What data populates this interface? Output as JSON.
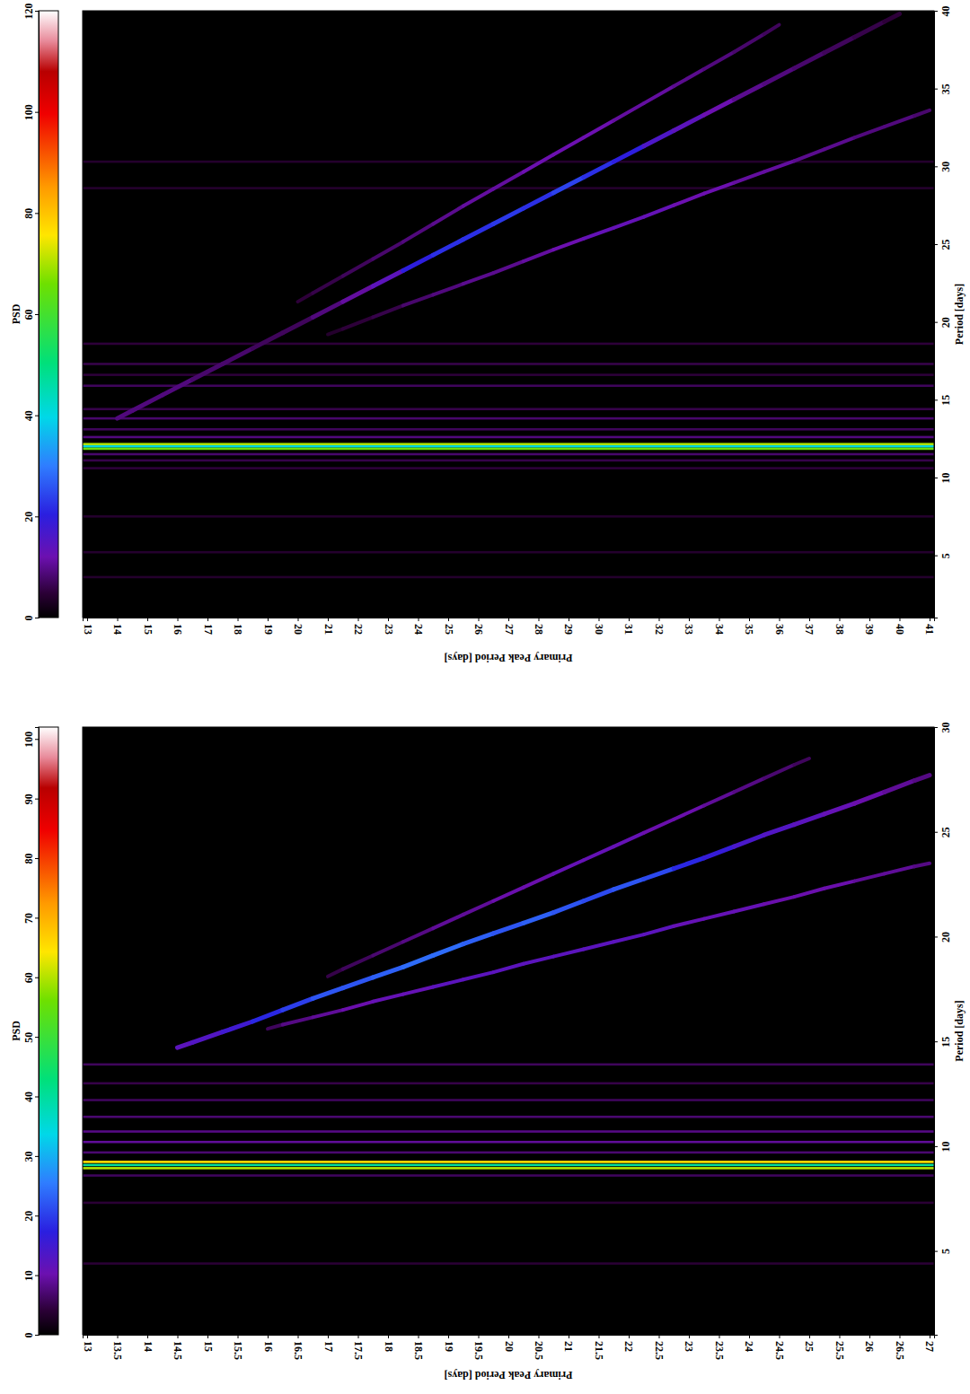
{
  "chart_data": [
    {
      "type": "heatmap",
      "xlabel": "Primary Peak Period [days]",
      "ylabel": "Period [days]",
      "xlim": [
        12.85,
        41.15
      ],
      "xticks": [
        13,
        14,
        15,
        16,
        17,
        18,
        19,
        20,
        21,
        22,
        23,
        24,
        25,
        26,
        27,
        28,
        29,
        30,
        31,
        32,
        33,
        34,
        35,
        36,
        37,
        38,
        39,
        40,
        41
      ],
      "ylim": [
        1,
        40
      ],
      "yticks": [
        5,
        10,
        15,
        20,
        25,
        30,
        35,
        40
      ],
      "colorbar": {
        "label": "PSD",
        "range": [
          0,
          120
        ],
        "ticks": [
          0,
          20,
          40,
          60,
          80,
          100,
          120
        ]
      },
      "bands": {
        "y": [
          30.3,
          28.6,
          18.6,
          17.3,
          16.6,
          15.9,
          14.4,
          13.8,
          13.1,
          12.6,
          12.15,
          12.0,
          11.85,
          11.5,
          11.1,
          10.6,
          7.5,
          5.2,
          3.6
        ],
        "values": [
          4,
          4,
          5,
          6,
          5,
          7,
          6,
          8,
          7,
          9,
          70,
          40,
          65,
          8,
          6,
          5,
          4,
          4,
          4
        ]
      },
      "ridges": [
        {
          "x": [
            14,
            15,
            16,
            17,
            18,
            19,
            20,
            21,
            22,
            23,
            24,
            25,
            26,
            27,
            28,
            29,
            30,
            31,
            32,
            33,
            34,
            35,
            36,
            37,
            38,
            39,
            40
          ],
          "y": [
            13.8,
            14.8,
            15.8,
            16.8,
            17.8,
            18.8,
            19.8,
            20.8,
            21.8,
            22.8,
            23.8,
            24.8,
            25.8,
            26.8,
            27.8,
            28.8,
            29.8,
            30.8,
            31.8,
            32.8,
            33.8,
            34.8,
            35.8,
            36.8,
            37.8,
            38.8,
            39.8
          ],
          "values": [
            9,
            9,
            9,
            8,
            8,
            7,
            7,
            9,
            11,
            14,
            20,
            22,
            22,
            23,
            22,
            24,
            22,
            20,
            16,
            14,
            12,
            10,
            9,
            8,
            7,
            6,
            5
          ]
        },
        {
          "x": [
            20,
            21,
            22,
            23,
            24,
            25,
            26,
            27,
            28,
            29,
            30,
            31,
            32,
            33,
            34,
            35,
            36
          ],
          "y": [
            21.3,
            22.4,
            23.5,
            24.6,
            25.7,
            26.9,
            28.0,
            29.1,
            30.2,
            31.3,
            32.4,
            33.5,
            34.6,
            35.7,
            36.8,
            37.9,
            39.1
          ],
          "values": [
            5,
            6,
            7,
            8,
            9,
            10,
            11,
            11,
            12,
            12,
            12,
            11,
            11,
            10,
            9,
            8,
            7
          ]
        },
        {
          "x": [
            21,
            22,
            23,
            24,
            25,
            26,
            27,
            28,
            29,
            30,
            31,
            32,
            33,
            34,
            35,
            36,
            37,
            38,
            39,
            40,
            41
          ],
          "y": [
            19.2,
            19.9,
            20.7,
            21.4,
            22.1,
            22.8,
            23.5,
            24.3,
            25.0,
            25.7,
            26.4,
            27.1,
            27.9,
            28.6,
            29.3,
            30.0,
            30.7,
            31.5,
            32.2,
            32.9,
            33.6
          ],
          "values": [
            4,
            5,
            6,
            8,
            9,
            10,
            10,
            11,
            12,
            13,
            13,
            13,
            12,
            12,
            11,
            11,
            10,
            10,
            9,
            9,
            8
          ]
        }
      ]
    },
    {
      "type": "heatmap",
      "xlabel": "Primary Peak Period [days]",
      "ylabel": "Period [days]",
      "xlim": [
        12.925,
        27.075
      ],
      "xticks": [
        13,
        13.5,
        14,
        14.5,
        15,
        15.5,
        16,
        16.5,
        17,
        17.5,
        18,
        18.5,
        19,
        19.5,
        20,
        20.5,
        21,
        21.5,
        22,
        22.5,
        23,
        23.5,
        24,
        24.5,
        25,
        25.5,
        26,
        26.5,
        27
      ],
      "ylim": [
        1,
        30
      ],
      "yticks": [
        5,
        10,
        15,
        20,
        25,
        30
      ],
      "colorbar": {
        "label": "PSD",
        "range": [
          0,
          102
        ],
        "ticks": [
          0,
          10,
          20,
          30,
          40,
          50,
          60,
          70,
          80,
          90,
          100
        ]
      },
      "bands": {
        "y": [
          13.9,
          13.0,
          12.2,
          11.4,
          10.7,
          10.2,
          9.7,
          9.25,
          9.1,
          8.95,
          8.6,
          7.3,
          4.4
        ],
        "values": [
          6,
          5,
          6,
          7,
          8,
          9,
          7,
          65,
          40,
          60,
          6,
          4,
          4
        ]
      },
      "ridges": [
        {
          "x": [
            14.5,
            15,
            15.5,
            16,
            16.5,
            17,
            17.5,
            18,
            18.5,
            19,
            19.5,
            20,
            20.5,
            21,
            21.5,
            22,
            22.5,
            23,
            23.5,
            24,
            24.5,
            25,
            25.5,
            26,
            26.5,
            27
          ],
          "y": [
            14.7,
            15.2,
            15.7,
            16.2,
            16.8,
            17.3,
            17.8,
            18.3,
            18.8,
            19.4,
            19.9,
            20.4,
            20.9,
            21.4,
            22.0,
            22.5,
            23.0,
            23.5,
            24.0,
            24.6,
            25.1,
            25.6,
            26.1,
            26.6,
            27.2,
            27.7
          ],
          "values": [
            12,
            13,
            15,
            18,
            20,
            22,
            22,
            23,
            24,
            24,
            23,
            22,
            23,
            22,
            21,
            22,
            21,
            18,
            16,
            14,
            13,
            12,
            11,
            10,
            9,
            8
          ]
        },
        {
          "x": [
            17,
            17.5,
            18,
            18.5,
            19,
            19.5,
            20,
            20.5,
            21,
            21.5,
            22,
            22.5,
            23,
            23.5,
            24,
            24.5,
            25
          ],
          "y": [
            18.1,
            18.8,
            19.4,
            20.1,
            20.7,
            21.4,
            22.0,
            22.7,
            23.3,
            24.0,
            24.6,
            25.3,
            25.9,
            26.6,
            27.2,
            27.9,
            28.5
          ],
          "values": [
            5,
            6,
            7,
            8,
            9,
            9,
            10,
            10,
            11,
            11,
            11,
            10,
            10,
            9,
            8,
            7,
            6
          ]
        },
        {
          "x": [
            16,
            16.5,
            17,
            17.5,
            18,
            18.5,
            19,
            19.5,
            20,
            20.5,
            21,
            21.5,
            22,
            22.5,
            23,
            23.5,
            24,
            24.5,
            25,
            25.5,
            26,
            26.5,
            27
          ],
          "y": [
            15.6,
            16.0,
            16.3,
            16.7,
            17.1,
            17.4,
            17.8,
            18.1,
            18.5,
            18.9,
            19.2,
            19.6,
            19.9,
            20.3,
            20.7,
            21.0,
            21.4,
            21.7,
            22.1,
            22.5,
            22.8,
            23.2,
            23.5
          ],
          "values": [
            6,
            8,
            9,
            10,
            11,
            11,
            12,
            12,
            12,
            12,
            12,
            12,
            12,
            12,
            11,
            11,
            11,
            10,
            10,
            10,
            9,
            9,
            8
          ]
        }
      ]
    }
  ]
}
